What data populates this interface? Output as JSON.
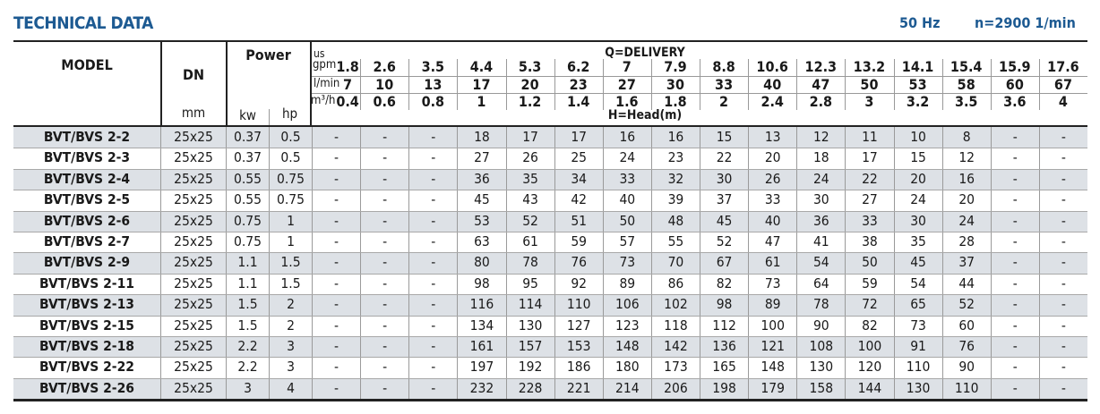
{
  "header": {
    "title": "TECHNICAL DATA",
    "frequency": "50 Hz",
    "speed": "n=2900 1/min"
  },
  "columns": {
    "model": "MODEL",
    "dn": "DN",
    "dn_unit": "mm",
    "power": "Power",
    "kw": "kw",
    "hp": "hp",
    "delivery": "Q=DELIVERY",
    "head": "H=Head(m)",
    "gpm_unit_top": "us",
    "gpm_unit": "gpm",
    "lmin_unit": "l/min",
    "m3h_unit": "m³/h",
    "gpm": [
      "1.8",
      "2.6",
      "3.5",
      "4.4",
      "5.3",
      "6.2",
      "7",
      "7.9",
      "8.8",
      "10.6",
      "12.3",
      "13.2",
      "14.1",
      "15.4",
      "15.9",
      "17.6"
    ],
    "lmin": [
      "7",
      "10",
      "13",
      "17",
      "20",
      "23",
      "27",
      "30",
      "33",
      "40",
      "47",
      "50",
      "53",
      "58",
      "60",
      "67"
    ],
    "m3h": [
      "0.4",
      "0.6",
      "0.8",
      "1",
      "1.2",
      "1.4",
      "1.6",
      "1.8",
      "2",
      "2.4",
      "2.8",
      "3",
      "3.2",
      "3.5",
      "3.6",
      "4"
    ]
  },
  "rows": [
    {
      "model": "BVT/BVS 2-2",
      "dn": "25x25",
      "kw": "0.37",
      "hp": "0.5",
      "head": [
        "-",
        "-",
        "-",
        "18",
        "17",
        "17",
        "16",
        "16",
        "15",
        "13",
        "12",
        "11",
        "10",
        "8",
        "-",
        "-"
      ]
    },
    {
      "model": "BVT/BVS 2-3",
      "dn": "25x25",
      "kw": "0.37",
      "hp": "0.5",
      "head": [
        "-",
        "-",
        "-",
        "27",
        "26",
        "25",
        "24",
        "23",
        "22",
        "20",
        "18",
        "17",
        "15",
        "12",
        "-",
        "-"
      ]
    },
    {
      "model": "BVT/BVS 2-4",
      "dn": "25x25",
      "kw": "0.55",
      "hp": "0.75",
      "head": [
        "-",
        "-",
        "-",
        "36",
        "35",
        "34",
        "33",
        "32",
        "30",
        "26",
        "24",
        "22",
        "20",
        "16",
        "-",
        "-"
      ]
    },
    {
      "model": "BVT/BVS 2-5",
      "dn": "25x25",
      "kw": "0.55",
      "hp": "0.75",
      "head": [
        "-",
        "-",
        "-",
        "45",
        "43",
        "42",
        "40",
        "39",
        "37",
        "33",
        "30",
        "27",
        "24",
        "20",
        "-",
        "-"
      ]
    },
    {
      "model": "BVT/BVS 2-6",
      "dn": "25x25",
      "kw": "0.75",
      "hp": "1",
      "head": [
        "-",
        "-",
        "-",
        "53",
        "52",
        "51",
        "50",
        "48",
        "45",
        "40",
        "36",
        "33",
        "30",
        "24",
        "-",
        "-"
      ]
    },
    {
      "model": "BVT/BVS 2-7",
      "dn": "25x25",
      "kw": "0.75",
      "hp": "1",
      "head": [
        "-",
        "-",
        "-",
        "63",
        "61",
        "59",
        "57",
        "55",
        "52",
        "47",
        "41",
        "38",
        "35",
        "28",
        "-",
        "-"
      ]
    },
    {
      "model": "BVT/BVS 2-9",
      "dn": "25x25",
      "kw": "1.1",
      "hp": "1.5",
      "head": [
        "-",
        "-",
        "-",
        "80",
        "78",
        "76",
        "73",
        "70",
        "67",
        "61",
        "54",
        "50",
        "45",
        "37",
        "-",
        "-"
      ]
    },
    {
      "model": "BVT/BVS 2-11",
      "dn": "25x25",
      "kw": "1.1",
      "hp": "1.5",
      "head": [
        "-",
        "-",
        "-",
        "98",
        "95",
        "92",
        "89",
        "86",
        "82",
        "73",
        "64",
        "59",
        "54",
        "44",
        "-",
        "-"
      ]
    },
    {
      "model": "BVT/BVS 2-13",
      "dn": "25x25",
      "kw": "1.5",
      "hp": "2",
      "head": [
        "-",
        "-",
        "-",
        "116",
        "114",
        "110",
        "106",
        "102",
        "98",
        "89",
        "78",
        "72",
        "65",
        "52",
        "-",
        "-"
      ]
    },
    {
      "model": "BVT/BVS 2-15",
      "dn": "25x25",
      "kw": "1.5",
      "hp": "2",
      "head": [
        "-",
        "-",
        "-",
        "134",
        "130",
        "127",
        "123",
        "118",
        "112",
        "100",
        "90",
        "82",
        "73",
        "60",
        "-",
        "-"
      ]
    },
    {
      "model": "BVT/BVS 2-18",
      "dn": "25x25",
      "kw": "2.2",
      "hp": "3",
      "head": [
        "-",
        "-",
        "-",
        "161",
        "157",
        "153",
        "148",
        "142",
        "136",
        "121",
        "108",
        "100",
        "91",
        "76",
        "-",
        "-"
      ]
    },
    {
      "model": "BVT/BVS 2-22",
      "dn": "25x25",
      "kw": "2.2",
      "hp": "3",
      "head": [
        "-",
        "-",
        "-",
        "197",
        "192",
        "186",
        "180",
        "173",
        "165",
        "148",
        "130",
        "120",
        "110",
        "90",
        "-",
        "-"
      ]
    },
    {
      "model": "BVT/BVS 2-26",
      "dn": "25x25",
      "kw": "3",
      "hp": "4",
      "head": [
        "-",
        "-",
        "-",
        "232",
        "228",
        "221",
        "214",
        "206",
        "198",
        "179",
        "158",
        "144",
        "130",
        "110",
        "-",
        "-"
      ]
    }
  ],
  "colors": {
    "title": "#1d5a92",
    "row_alt": "#dde1e6"
  }
}
